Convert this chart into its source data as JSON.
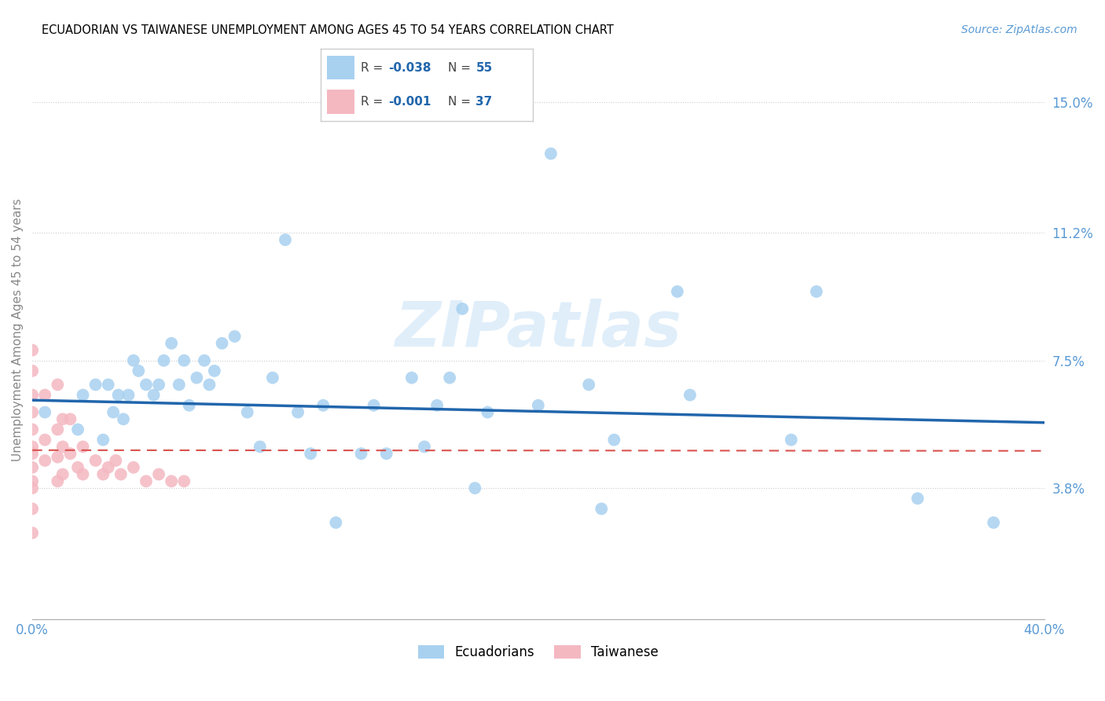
{
  "title": "ECUADORIAN VS TAIWANESE UNEMPLOYMENT AMONG AGES 45 TO 54 YEARS CORRELATION CHART",
  "source": "Source: ZipAtlas.com",
  "ylabel": "Unemployment Among Ages 45 to 54 years",
  "xlim": [
    0.0,
    0.4
  ],
  "ylim": [
    0.0,
    0.168
  ],
  "x_ticks": [
    0.0,
    0.08,
    0.16,
    0.24,
    0.32,
    0.4
  ],
  "x_tick_labels": [
    "0.0%",
    "",
    "",
    "",
    "",
    "40.0%"
  ],
  "y_tick_vals": [
    0.038,
    0.075,
    0.112,
    0.15
  ],
  "y_tick_labels": [
    "3.8%",
    "7.5%",
    "11.2%",
    "15.0%"
  ],
  "watermark": "ZIPatlas",
  "ecuadorian_color": "#a8d1f0",
  "taiwanese_color": "#f4b8c1",
  "ecuadorian_trend_color": "#2166ac",
  "taiwanese_trend_color": "#d9534f",
  "background_color": "#ffffff",
  "grid_color": "#cccccc",
  "axis_label_color": "#5b9bd5",
  "legend_value_color": "#2166ac",
  "legend_label_color": "#444444",
  "ecuadorians_x": [
    0.005,
    0.018,
    0.02,
    0.025,
    0.028,
    0.03,
    0.032,
    0.034,
    0.036,
    0.038,
    0.04,
    0.042,
    0.045,
    0.048,
    0.05,
    0.052,
    0.055,
    0.058,
    0.06,
    0.062,
    0.065,
    0.068,
    0.07,
    0.072,
    0.075,
    0.08,
    0.085,
    0.09,
    0.095,
    0.1,
    0.105,
    0.11,
    0.115,
    0.12,
    0.13,
    0.135,
    0.14,
    0.15,
    0.155,
    0.16,
    0.165,
    0.17,
    0.175,
    0.18,
    0.2,
    0.205,
    0.22,
    0.225,
    0.23,
    0.255,
    0.26,
    0.3,
    0.31,
    0.35,
    0.38
  ],
  "ecuadorians_y": [
    0.06,
    0.055,
    0.065,
    0.068,
    0.052,
    0.068,
    0.06,
    0.065,
    0.058,
    0.065,
    0.075,
    0.072,
    0.068,
    0.065,
    0.068,
    0.075,
    0.08,
    0.068,
    0.075,
    0.062,
    0.07,
    0.075,
    0.068,
    0.072,
    0.08,
    0.082,
    0.06,
    0.05,
    0.07,
    0.11,
    0.06,
    0.048,
    0.062,
    0.028,
    0.048,
    0.062,
    0.048,
    0.07,
    0.05,
    0.062,
    0.07,
    0.09,
    0.038,
    0.06,
    0.062,
    0.135,
    0.068,
    0.032,
    0.052,
    0.095,
    0.065,
    0.052,
    0.095,
    0.035,
    0.028
  ],
  "taiwanese_x": [
    0.0,
    0.0,
    0.0,
    0.0,
    0.0,
    0.0,
    0.0,
    0.0,
    0.0,
    0.0,
    0.0,
    0.0,
    0.005,
    0.005,
    0.005,
    0.01,
    0.01,
    0.01,
    0.01,
    0.012,
    0.012,
    0.012,
    0.015,
    0.015,
    0.018,
    0.02,
    0.02,
    0.025,
    0.028,
    0.03,
    0.033,
    0.035,
    0.04,
    0.045,
    0.05,
    0.055,
    0.06
  ],
  "taiwanese_y": [
    0.078,
    0.072,
    0.065,
    0.06,
    0.055,
    0.05,
    0.048,
    0.044,
    0.04,
    0.038,
    0.032,
    0.025,
    0.065,
    0.052,
    0.046,
    0.068,
    0.055,
    0.047,
    0.04,
    0.058,
    0.05,
    0.042,
    0.058,
    0.048,
    0.044,
    0.05,
    0.042,
    0.046,
    0.042,
    0.044,
    0.046,
    0.042,
    0.044,
    0.04,
    0.042,
    0.04,
    0.04
  ],
  "ecu_trend_x": [
    0.0,
    0.4
  ],
  "ecu_trend_y": [
    0.0635,
    0.058
  ],
  "tai_trend_x": [
    0.0,
    0.4
  ],
  "tai_trend_y": [
    0.049,
    0.049
  ]
}
